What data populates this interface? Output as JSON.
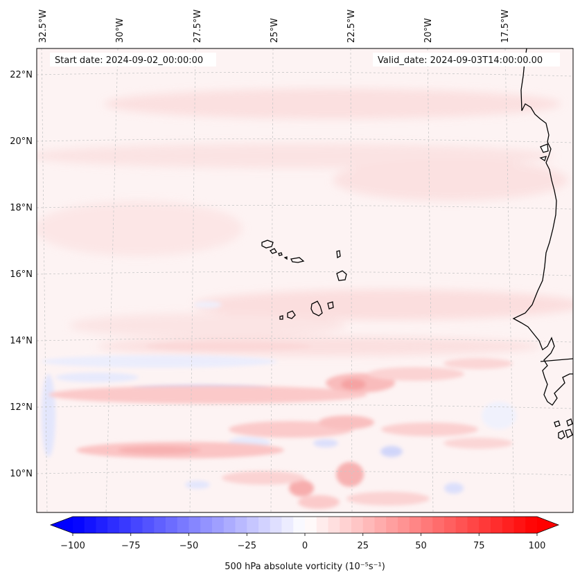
{
  "map": {
    "start_date_text": "Start date: 2024-09-02_00:00:00",
    "valid_date_text": "Valid_date: 2024-09-03T14:00:00.00",
    "longitude_labels": [
      "32.5°W",
      "30°W",
      "27.5°W",
      "25°W",
      "22.5°W",
      "20°W",
      "17.5°W"
    ],
    "latitude_labels": [
      "22°N",
      "20°N",
      "18°N",
      "16°N",
      "14°N",
      "12°N",
      "10°N"
    ],
    "land_labels": [],
    "colors": {
      "land_outline": "#000000",
      "background": "#fdf3f3",
      "gridline": "#c8c8c8"
    }
  },
  "colorbar": {
    "label": "500 hPa absolute vorticity (10⁻⁵s⁻¹)",
    "ticks": [
      "−100",
      "−75",
      "−50",
      "−25",
      "0",
      "25",
      "50",
      "75",
      "100"
    ],
    "min": -100,
    "max": 100,
    "low_color": "#0000ff",
    "high_color": "#ff0000"
  }
}
